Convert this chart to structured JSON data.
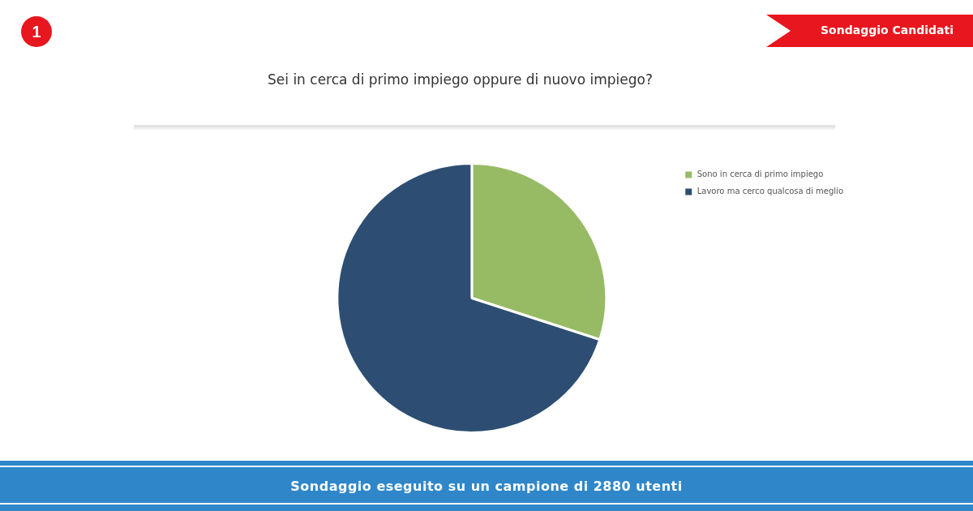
{
  "chart_data": {
    "type": "pie",
    "title": "Sei in cerca di primo impiego oppure di nuovo impiego?",
    "categories": [
      "Sono in cerca di primo impiego",
      "Lavoro ma cerco qualcosa di meglio"
    ],
    "values": [
      30,
      70
    ],
    "colors": [
      "#97bb64",
      "#2d4e72"
    ],
    "legend": "top right",
    "annotations": [
      "1",
      "Sondaggio Candidati",
      "Sondaggio eseguito su un campione di 2880 utenti"
    ]
  }
}
